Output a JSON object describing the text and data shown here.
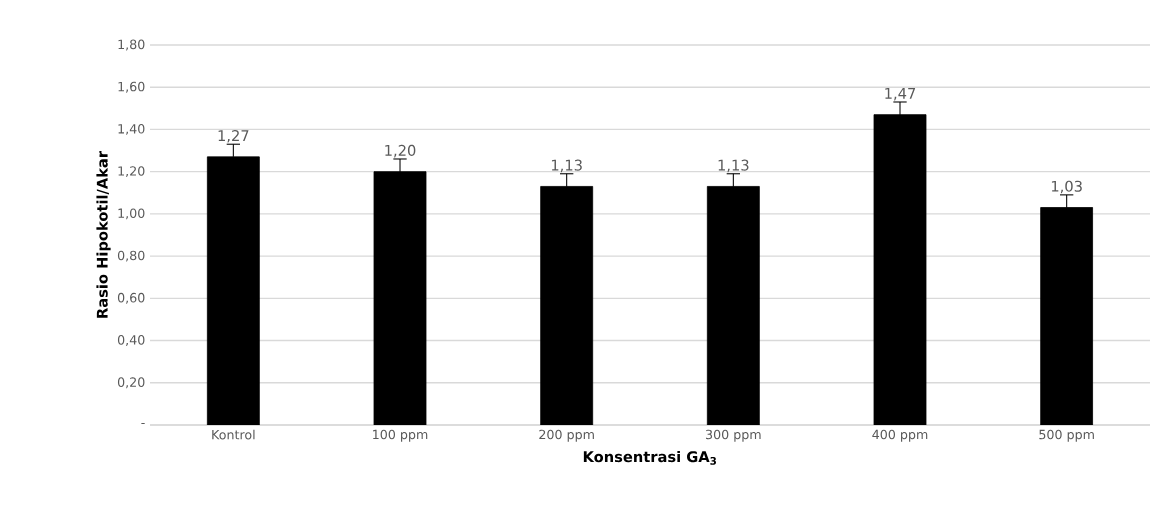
{
  "chart_data": {
    "type": "bar",
    "xlabel": "Konsentrasi GA$_{3}$",
    "ylabel": "Rasio Hipokotil/Akar",
    "categories": [
      "Kontrol",
      "100 ppm",
      "200 ppm",
      "300 ppm",
      "400 ppm",
      "500 ppm"
    ],
    "values": [
      1.27,
      1.2,
      1.13,
      1.13,
      1.47,
      1.03
    ],
    "errors": [
      0.06,
      0.06,
      0.06,
      0.06,
      0.06,
      0.06
    ],
    "value_labels": [
      "1,27",
      "1,20",
      "1,13",
      "1,13",
      "1,47",
      "1,03"
    ],
    "color": "#000000",
    "ylim": [
      0,
      1.8
    ],
    "yticks": [
      {
        "value": 0,
        "label": "-"
      },
      {
        "value": 0.2,
        "label": "0,20"
      },
      {
        "value": 0.4,
        "label": "0,40"
      },
      {
        "value": 0.6,
        "label": "0,60"
      },
      {
        "value": 0.8,
        "label": "0,80"
      },
      {
        "value": 1.0,
        "label": "1,00"
      },
      {
        "value": 1.2,
        "label": "1,20"
      },
      {
        "value": 1.4,
        "label": "1,40"
      },
      {
        "value": 1.6,
        "label": "1,60"
      },
      {
        "value": 1.8,
        "label": "1,80"
      }
    ],
    "grid": "y"
  }
}
